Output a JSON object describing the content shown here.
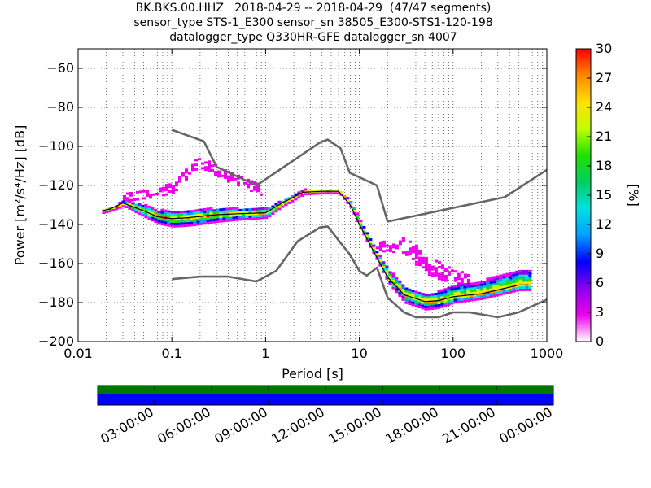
{
  "title_lines": [
    "BK.BKS.00.HHZ   2018-04-29 -- 2018-04-29  (47/47 segments)",
    "sensor_type STS-1_E300 sensor_sn 38505_E300-STS1-120-198",
    "datalogger_type Q330HR-GFE datalogger_sn 4007"
  ],
  "chart_data": [
    {
      "type": "heatmap",
      "xlabel": "Period [s]",
      "ylabel": "Power [m²/s⁴/Hz] [dB]",
      "xscale": "log",
      "xlim": [
        0.01,
        1000
      ],
      "ylim": [
        -200,
        -50
      ],
      "x_ticks": [
        {
          "value": 0.01,
          "label": "0.01"
        },
        {
          "value": 0.1,
          "label": "0.1"
        },
        {
          "value": 1,
          "label": "1"
        },
        {
          "value": 10,
          "label": "10"
        },
        {
          "value": 100,
          "label": "100"
        },
        {
          "value": 1000,
          "label": "1000"
        }
      ],
      "y_ticks": [
        {
          "value": -60,
          "label": "−60"
        },
        {
          "value": -80,
          "label": "−80"
        },
        {
          "value": -100,
          "label": "−100"
        },
        {
          "value": -120,
          "label": "−120"
        },
        {
          "value": -140,
          "label": "−140"
        },
        {
          "value": -160,
          "label": "−160"
        },
        {
          "value": -180,
          "label": "−180"
        },
        {
          "value": -200,
          "label": "−200"
        }
      ],
      "grid": true,
      "colorbar": {
        "label": "[%]",
        "range": [
          0,
          30
        ],
        "ticks": [
          "0",
          "3",
          "6",
          "9",
          "12",
          "15",
          "18",
          "21",
          "24",
          "27",
          "30"
        ],
        "colors": [
          "#ffffff",
          "#ee00ee",
          "#8800ee",
          "#0000ff",
          "#00a0ff",
          "#00e0e0",
          "#00d060",
          "#20e000",
          "#c0ff00",
          "#ffe000",
          "#ff8800",
          "#ff0000"
        ]
      },
      "series": [
        {
          "role": "noise-model-high",
          "color": "#666666",
          "x": [
            0.1,
            0.22,
            0.3,
            0.8,
            3.8,
            4.6,
            6.3,
            7.9,
            15.4,
            20,
            354.8,
            1000
          ],
          "y": [
            -91.5,
            -97.4,
            -110.5,
            -120,
            -98,
            -96.5,
            -101,
            -113.5,
            -120,
            -138.5,
            -126,
            -112
          ]
        },
        {
          "role": "noise-model-low",
          "color": "#666666",
          "x": [
            0.1,
            0.2,
            0.4,
            0.8,
            1.3,
            2.2,
            3.8,
            4.6,
            6.3,
            7.9,
            10,
            12,
            15.4,
            20,
            30,
            40,
            70,
            100,
            150,
            300,
            500,
            1000
          ],
          "y": [
            -168,
            -166.7,
            -166.7,
            -169.2,
            -163.7,
            -148.6,
            -141.5,
            -141,
            -149.4,
            -155.3,
            -163.8,
            -166.2,
            -162.1,
            -177.5,
            -185,
            -187.5,
            -187.5,
            -185,
            -185,
            -187.5,
            -185,
            -178.5
          ]
        },
        {
          "role": "mode",
          "color": "#000000",
          "x": [
            0.018,
            0.022,
            0.03,
            0.05,
            0.07,
            0.1,
            0.15,
            0.3,
            0.5,
            1,
            1.5,
            2.5,
            4,
            6,
            8,
            10,
            15,
            20,
            30,
            50,
            70,
            100,
            200,
            500,
            640
          ],
          "y": [
            -133,
            -132,
            -129,
            -133,
            -136,
            -137,
            -136.5,
            -135,
            -134.5,
            -134,
            -129,
            -123.5,
            -123,
            -123,
            -130,
            -140,
            -156,
            -167,
            -176,
            -179.5,
            -179,
            -177,
            -175.5,
            -171,
            -171
          ]
        }
      ],
      "density_bands": [
        {
          "label": "main",
          "x": [
            0.018,
            0.022,
            0.03,
            0.05,
            0.07,
            0.1,
            0.15,
            0.3,
            0.5,
            1,
            1.5,
            2.5,
            4,
            6,
            8,
            10,
            15,
            20,
            30,
            50,
            70,
            100,
            200,
            500,
            640
          ],
          "center": [
            -133,
            -132,
            -129,
            -133,
            -136,
            -137,
            -136.5,
            -135,
            -134.5,
            -134,
            -129,
            -123.5,
            -123,
            -123,
            -130,
            -140,
            -156,
            -167,
            -176,
            -179.5,
            -179,
            -177,
            -175.5,
            -171,
            -171
          ],
          "spread_below": [
            1,
            1,
            1.5,
            3,
            3.5,
            4,
            4,
            3.5,
            3,
            2.5,
            1.5,
            1,
            1,
            1,
            1.5,
            2,
            2,
            3,
            4,
            4,
            3.5,
            3,
            2.5,
            2.5,
            2.5
          ],
          "spread_above": [
            1,
            1,
            1.5,
            3,
            3.5,
            4,
            4,
            3.5,
            3,
            2.5,
            2,
            1.5,
            1,
            1,
            1.5,
            2,
            2.5,
            4,
            4,
            4,
            5,
            6,
            7,
            8,
            8
          ]
        },
        {
          "label": "scatter-hump",
          "x": [
            0.03,
            0.06,
            0.1,
            0.13,
            0.17,
            0.2,
            0.25,
            0.35,
            0.5,
            0.7,
            0.9
          ],
          "center": [
            -126,
            -124,
            -121,
            -115,
            -109,
            -108,
            -110,
            -114,
            -117,
            -120,
            -123
          ],
          "spread_below": [
            2,
            2,
            3,
            3,
            3,
            3,
            3,
            3,
            3,
            3,
            2
          ],
          "spread_above": [
            2,
            2,
            3,
            3,
            3,
            3,
            3,
            3,
            3,
            3,
            2
          ]
        },
        {
          "label": "scatter-tail",
          "x": [
            15,
            20,
            25,
            30,
            40,
            55,
            70,
            100,
            150
          ],
          "center": [
            -150,
            -152,
            -150,
            -151,
            -156,
            -160,
            -163,
            -166,
            -168
          ],
          "spread_below": [
            2,
            3,
            3,
            4,
            5,
            6,
            5,
            4,
            3
          ],
          "spread_above": [
            2,
            3,
            3,
            4,
            5,
            5,
            4,
            3,
            2
          ]
        }
      ]
    },
    {
      "type": "timeline",
      "x_ticks": [
        "03:00:00",
        "06:00:00",
        "09:00:00",
        "12:00:00",
        "15:00:00",
        "18:00:00",
        "21:00:00",
        "00:00:00"
      ],
      "segments_color": "#0000ff",
      "coverage_color": "#007700"
    }
  ]
}
